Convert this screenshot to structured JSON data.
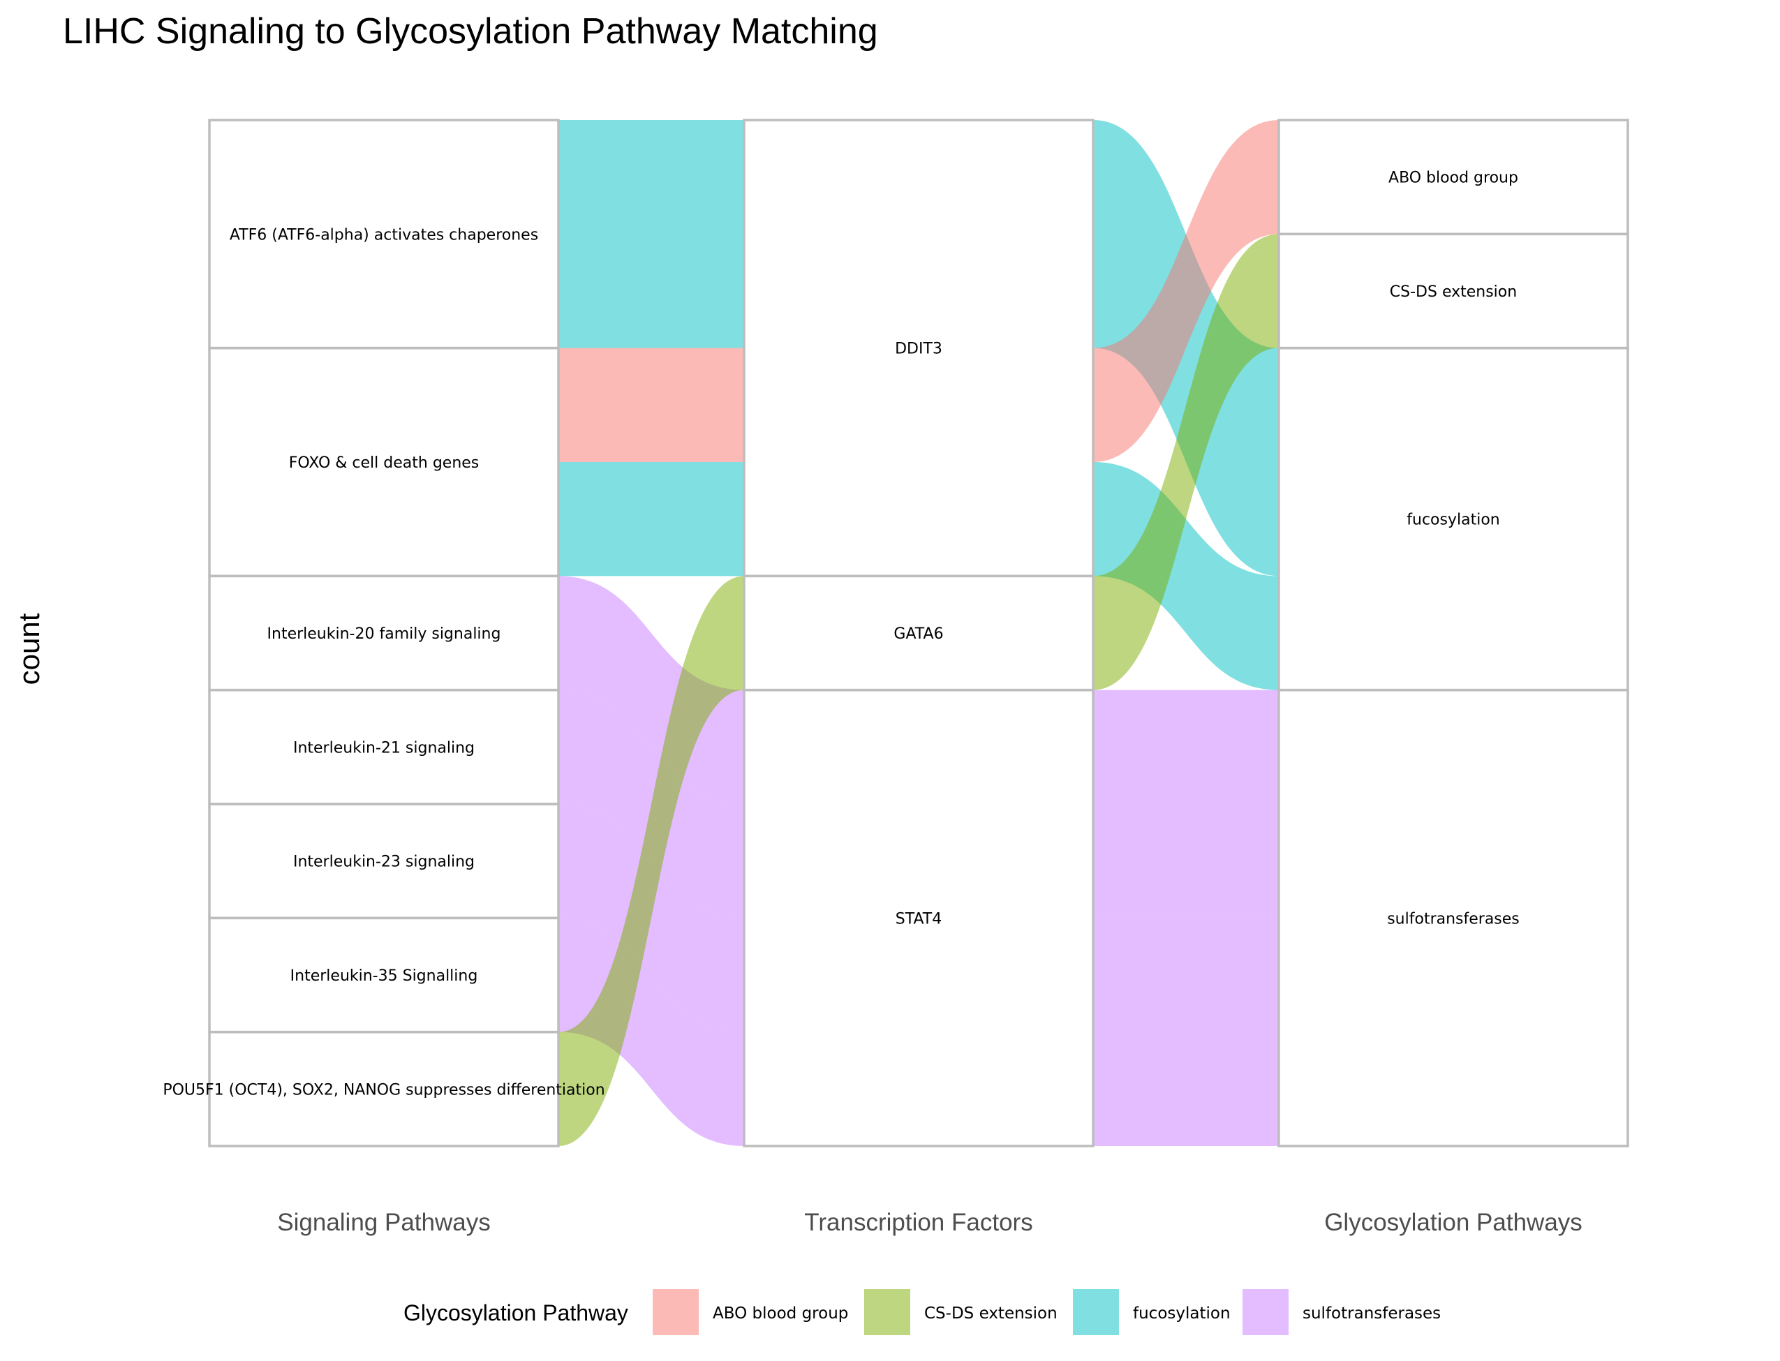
{
  "chart_data": {
    "type": "alluvial",
    "title": "LIHC Signaling to Glycosylation Pathway Matching",
    "ylabel": "count",
    "axes": [
      {
        "label": "Signaling Pathways",
        "nodes": [
          "ATF6 (ATF6-alpha) activates chaperones",
          "FOXO & cell death genes",
          "Interleukin-20 family signaling",
          "Interleukin-21 signaling",
          "Interleukin-23 signaling",
          "Interleukin-35 Signalling",
          "POU5F1 (OCT4), SOX2, NANOG suppresses differentiation"
        ]
      },
      {
        "label": "Transcription Factors",
        "nodes": [
          "DDIT3",
          "GATA6",
          "STAT4"
        ]
      },
      {
        "label": "Glycosylation Pathways",
        "nodes": [
          "ABO blood group",
          "CS-DS extension",
          "fucosylation",
          "sulfotransferases"
        ]
      }
    ],
    "flows": [
      {
        "path": [
          "ATF6 (ATF6-alpha) activates chaperones",
          "DDIT3",
          "fucosylation"
        ],
        "fill": "fucosylation",
        "count": 2
      },
      {
        "path": [
          "FOXO & cell death genes",
          "DDIT3",
          "ABO blood group"
        ],
        "fill": "ABO blood group",
        "count": 1
      },
      {
        "path": [
          "FOXO & cell death genes",
          "DDIT3",
          "fucosylation"
        ],
        "fill": "fucosylation",
        "count": 1
      },
      {
        "path": [
          "Interleukin-20 family signaling",
          "STAT4",
          "sulfotransferases"
        ],
        "fill": "sulfotransferases",
        "count": 1
      },
      {
        "path": [
          "Interleukin-21 signaling",
          "STAT4",
          "sulfotransferases"
        ],
        "fill": "sulfotransferases",
        "count": 1
      },
      {
        "path": [
          "Interleukin-23 signaling",
          "STAT4",
          "sulfotransferases"
        ],
        "fill": "sulfotransferases",
        "count": 1
      },
      {
        "path": [
          "Interleukin-35 Signalling",
          "STAT4",
          "sulfotransferases"
        ],
        "fill": "sulfotransferases",
        "count": 1
      },
      {
        "path": [
          "POU5F1 (OCT4), SOX2, NANOG suppresses differentiation",
          "GATA6",
          "CS-DS extension"
        ],
        "fill": "CS-DS extension",
        "count": 1
      }
    ],
    "legend": {
      "title": "Glycosylation Pathway",
      "placement": "bottom",
      "entries": [
        {
          "name": "ABO blood group",
          "color": "#F8766D"
        },
        {
          "name": "CS-DS extension",
          "color": "#7CAE00"
        },
        {
          "name": "fucosylation",
          "color": "#00BFC4"
        },
        {
          "name": "sulfotransferases",
          "color": "#C77CFF"
        }
      ]
    },
    "grid": false
  }
}
